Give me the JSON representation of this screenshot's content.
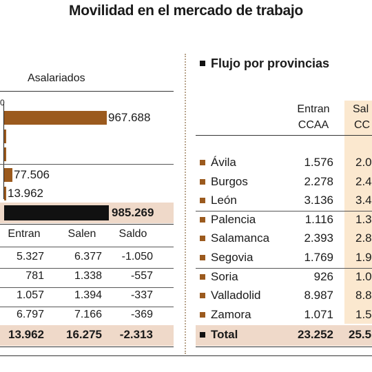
{
  "title": "Movilidad en el mercado de trabajo",
  "colors": {
    "bar": "#9b5a1e",
    "total_bar": "#111111",
    "total_band": "#efd9c9",
    "salen_band": "#fbe8cf",
    "separator": "#b8a48c"
  },
  "chart_data": {
    "type": "bar",
    "subtitle": "Asalariados",
    "axis_zero_label": "0",
    "values": [
      967688,
      null,
      null,
      77506,
      13962
    ],
    "value_labels": [
      "967.688",
      "",
      "",
      "77.506",
      "13.962"
    ],
    "total": {
      "value": 985269,
      "label": "985.269"
    }
  },
  "left_table": {
    "headers": [
      "Entran",
      "Salen",
      "Saldo"
    ],
    "rows": [
      [
        "5.327",
        "6.377",
        "-1.050"
      ],
      [
        "781",
        "1.338",
        "-557"
      ],
      [
        "1.057",
        "1.394",
        "-337"
      ],
      [
        "6.797",
        "7.166",
        "-369"
      ]
    ],
    "total": [
      "13.962",
      "16.275",
      "-2.313"
    ]
  },
  "right_table": {
    "title": "Flujo por provincias",
    "headers": [
      {
        "l1": "Entran",
        "l2": "CCAA"
      },
      {
        "l1": "Sal",
        "l2": "CC"
      }
    ],
    "rows": [
      {
        "name": "Ávila",
        "entran": "1.576",
        "salen": "2.0"
      },
      {
        "name": "Burgos",
        "entran": "2.278",
        "salen": "2.4"
      },
      {
        "name": "León",
        "entran": "3.136",
        "salen": "3.4"
      },
      {
        "name": "Palencia",
        "entran": "1.116",
        "salen": "1.3"
      },
      {
        "name": "Salamanca",
        "entran": "2.393",
        "salen": "2.8"
      },
      {
        "name": "Segovia",
        "entran": "1.769",
        "salen": "1.9"
      },
      {
        "name": "Soria",
        "entran": "926",
        "salen": "1.0"
      },
      {
        "name": "Valladolid",
        "entran": "8.987",
        "salen": "8.8"
      },
      {
        "name": "Zamora",
        "entran": "1.071",
        "salen": "1.5"
      }
    ],
    "total": {
      "name": "Total",
      "entran": "23.252",
      "salen": "25.5"
    }
  }
}
